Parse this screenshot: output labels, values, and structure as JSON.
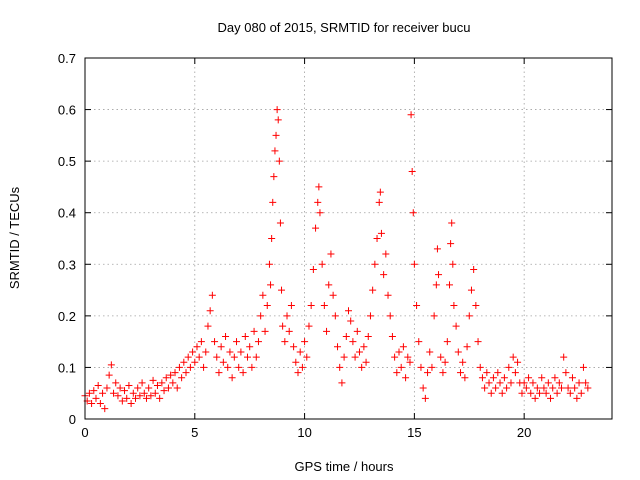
{
  "chart_data": {
    "type": "scatter",
    "title": "Day 080 of 2015, SRMTID for receiver bucu",
    "xlabel": "GPS time / hours",
    "ylabel": "SRMTID / TECUs",
    "xlim": [
      0,
      24
    ],
    "ylim": [
      0,
      0.7
    ],
    "x_ticks": [
      0,
      5,
      10,
      15,
      20
    ],
    "x_tick_labels": [
      "0",
      "5",
      "10",
      "15",
      "20"
    ],
    "y_ticks": [
      0,
      0.1,
      0.2,
      0.3,
      0.4,
      0.5,
      0.6,
      0.7
    ],
    "y_tick_labels": [
      "0",
      "0.1",
      "0.2",
      "0.3",
      "0.4",
      "0.5",
      "0.6",
      "0.7"
    ],
    "grid": true,
    "marker": "+",
    "series": [
      {
        "name": "SRMTID",
        "color": "#ff0000",
        "points": [
          [
            0.0,
            0.045
          ],
          [
            0.1,
            0.035
          ],
          [
            0.2,
            0.05
          ],
          [
            0.3,
            0.03
          ],
          [
            0.4,
            0.055
          ],
          [
            0.5,
            0.04
          ],
          [
            0.6,
            0.065
          ],
          [
            0.7,
            0.03
          ],
          [
            0.8,
            0.05
          ],
          [
            0.9,
            0.02
          ],
          [
            1.0,
            0.06
          ],
          [
            1.1,
            0.085
          ],
          [
            1.2,
            0.105
          ],
          [
            1.3,
            0.05
          ],
          [
            1.4,
            0.07
          ],
          [
            1.5,
            0.045
          ],
          [
            1.6,
            0.06
          ],
          [
            1.7,
            0.035
          ],
          [
            1.8,
            0.055
          ],
          [
            1.9,
            0.04
          ],
          [
            2.0,
            0.065
          ],
          [
            2.1,
            0.03
          ],
          [
            2.2,
            0.05
          ],
          [
            2.3,
            0.04
          ],
          [
            2.4,
            0.06
          ],
          [
            2.5,
            0.045
          ],
          [
            2.6,
            0.07
          ],
          [
            2.7,
            0.05
          ],
          [
            2.8,
            0.04
          ],
          [
            2.9,
            0.06
          ],
          [
            3.0,
            0.045
          ],
          [
            3.1,
            0.075
          ],
          [
            3.2,
            0.05
          ],
          [
            3.3,
            0.065
          ],
          [
            3.4,
            0.04
          ],
          [
            3.5,
            0.07
          ],
          [
            3.6,
            0.055
          ],
          [
            3.7,
            0.08
          ],
          [
            3.8,
            0.06
          ],
          [
            3.9,
            0.085
          ],
          [
            4.0,
            0.07
          ],
          [
            4.1,
            0.09
          ],
          [
            4.2,
            0.06
          ],
          [
            4.3,
            0.1
          ],
          [
            4.4,
            0.08
          ],
          [
            4.5,
            0.11
          ],
          [
            4.6,
            0.09
          ],
          [
            4.7,
            0.12
          ],
          [
            4.8,
            0.1
          ],
          [
            4.9,
            0.13
          ],
          [
            5.0,
            0.11
          ],
          [
            5.1,
            0.14
          ],
          [
            5.2,
            0.12
          ],
          [
            5.3,
            0.15
          ],
          [
            5.4,
            0.1
          ],
          [
            5.5,
            0.13
          ],
          [
            5.6,
            0.18
          ],
          [
            5.7,
            0.21
          ],
          [
            5.8,
            0.24
          ],
          [
            5.9,
            0.15
          ],
          [
            6.0,
            0.12
          ],
          [
            6.1,
            0.09
          ],
          [
            6.2,
            0.14
          ],
          [
            6.3,
            0.11
          ],
          [
            6.4,
            0.16
          ],
          [
            6.5,
            0.1
          ],
          [
            6.6,
            0.13
          ],
          [
            6.7,
            0.08
          ],
          [
            6.8,
            0.12
          ],
          [
            6.9,
            0.15
          ],
          [
            7.0,
            0.1
          ],
          [
            7.1,
            0.13
          ],
          [
            7.2,
            0.09
          ],
          [
            7.3,
            0.16
          ],
          [
            7.4,
            0.12
          ],
          [
            7.5,
            0.14
          ],
          [
            7.6,
            0.1
          ],
          [
            7.7,
            0.17
          ],
          [
            7.8,
            0.12
          ],
          [
            7.9,
            0.15
          ],
          [
            8.0,
            0.2
          ],
          [
            8.1,
            0.24
          ],
          [
            8.2,
            0.17
          ],
          [
            8.3,
            0.22
          ],
          [
            8.4,
            0.3
          ],
          [
            8.45,
            0.26
          ],
          [
            8.5,
            0.35
          ],
          [
            8.55,
            0.42
          ],
          [
            8.6,
            0.47
          ],
          [
            8.65,
            0.52
          ],
          [
            8.7,
            0.55
          ],
          [
            8.75,
            0.6
          ],
          [
            8.8,
            0.58
          ],
          [
            8.85,
            0.5
          ],
          [
            8.9,
            0.38
          ],
          [
            8.95,
            0.25
          ],
          [
            9.0,
            0.18
          ],
          [
            9.1,
            0.15
          ],
          [
            9.2,
            0.2
          ],
          [
            9.3,
            0.17
          ],
          [
            9.4,
            0.22
          ],
          [
            9.5,
            0.14
          ],
          [
            9.6,
            0.11
          ],
          [
            9.7,
            0.09
          ],
          [
            9.8,
            0.13
          ],
          [
            9.9,
            0.1
          ],
          [
            10.0,
            0.15
          ],
          [
            10.1,
            0.12
          ],
          [
            10.2,
            0.18
          ],
          [
            10.3,
            0.22
          ],
          [
            10.4,
            0.29
          ],
          [
            10.5,
            0.37
          ],
          [
            10.6,
            0.42
          ],
          [
            10.65,
            0.45
          ],
          [
            10.7,
            0.4
          ],
          [
            10.8,
            0.3
          ],
          [
            10.9,
            0.22
          ],
          [
            11.0,
            0.17
          ],
          [
            11.1,
            0.26
          ],
          [
            11.2,
            0.32
          ],
          [
            11.3,
            0.24
          ],
          [
            11.4,
            0.2
          ],
          [
            11.5,
            0.14
          ],
          [
            11.6,
            0.1
          ],
          [
            11.7,
            0.07
          ],
          [
            11.8,
            0.12
          ],
          [
            11.9,
            0.16
          ],
          [
            12.0,
            0.21
          ],
          [
            12.1,
            0.19
          ],
          [
            12.2,
            0.15
          ],
          [
            12.3,
            0.12
          ],
          [
            12.4,
            0.17
          ],
          [
            12.5,
            0.13
          ],
          [
            12.6,
            0.1
          ],
          [
            12.7,
            0.14
          ],
          [
            12.8,
            0.11
          ],
          [
            12.9,
            0.16
          ],
          [
            13.0,
            0.2
          ],
          [
            13.1,
            0.25
          ],
          [
            13.2,
            0.3
          ],
          [
            13.3,
            0.35
          ],
          [
            13.4,
            0.42
          ],
          [
            13.45,
            0.44
          ],
          [
            13.5,
            0.36
          ],
          [
            13.6,
            0.28
          ],
          [
            13.7,
            0.32
          ],
          [
            13.8,
            0.24
          ],
          [
            13.9,
            0.2
          ],
          [
            14.0,
            0.16
          ],
          [
            14.1,
            0.12
          ],
          [
            14.2,
            0.09
          ],
          [
            14.3,
            0.13
          ],
          [
            14.4,
            0.1
          ],
          [
            14.5,
            0.14
          ],
          [
            14.6,
            0.08
          ],
          [
            14.7,
            0.12
          ],
          [
            14.8,
            0.11
          ],
          [
            14.85,
            0.59
          ],
          [
            14.9,
            0.48
          ],
          [
            14.95,
            0.4
          ],
          [
            15.0,
            0.3
          ],
          [
            15.1,
            0.22
          ],
          [
            15.2,
            0.15
          ],
          [
            15.3,
            0.1
          ],
          [
            15.4,
            0.06
          ],
          [
            15.5,
            0.04
          ],
          [
            15.6,
            0.09
          ],
          [
            15.7,
            0.13
          ],
          [
            15.8,
            0.1
          ],
          [
            15.9,
            0.2
          ],
          [
            16.0,
            0.26
          ],
          [
            16.05,
            0.33
          ],
          [
            16.1,
            0.28
          ],
          [
            16.2,
            0.12
          ],
          [
            16.3,
            0.09
          ],
          [
            16.4,
            0.11
          ],
          [
            16.5,
            0.15
          ],
          [
            16.6,
            0.26
          ],
          [
            16.65,
            0.34
          ],
          [
            16.7,
            0.38
          ],
          [
            16.75,
            0.3
          ],
          [
            16.8,
            0.22
          ],
          [
            16.9,
            0.18
          ],
          [
            17.0,
            0.13
          ],
          [
            17.1,
            0.09
          ],
          [
            17.2,
            0.11
          ],
          [
            17.3,
            0.08
          ],
          [
            17.4,
            0.14
          ],
          [
            17.5,
            0.2
          ],
          [
            17.6,
            0.25
          ],
          [
            17.7,
            0.29
          ],
          [
            17.8,
            0.22
          ],
          [
            17.9,
            0.15
          ],
          [
            18.0,
            0.1
          ],
          [
            18.1,
            0.08
          ],
          [
            18.2,
            0.06
          ],
          [
            18.3,
            0.09
          ],
          [
            18.4,
            0.07
          ],
          [
            18.5,
            0.05
          ],
          [
            18.6,
            0.08
          ],
          [
            18.7,
            0.06
          ],
          [
            18.8,
            0.09
          ],
          [
            18.9,
            0.07
          ],
          [
            19.0,
            0.05
          ],
          [
            19.1,
            0.08
          ],
          [
            19.2,
            0.06
          ],
          [
            19.3,
            0.1
          ],
          [
            19.4,
            0.07
          ],
          [
            19.5,
            0.12
          ],
          [
            19.6,
            0.09
          ],
          [
            19.7,
            0.11
          ],
          [
            19.8,
            0.07
          ],
          [
            19.9,
            0.05
          ],
          [
            20.0,
            0.07
          ],
          [
            20.1,
            0.06
          ],
          [
            20.2,
            0.08
          ],
          [
            20.3,
            0.05
          ],
          [
            20.4,
            0.07
          ],
          [
            20.5,
            0.04
          ],
          [
            20.6,
            0.06
          ],
          [
            20.7,
            0.05
          ],
          [
            20.8,
            0.08
          ],
          [
            20.9,
            0.06
          ],
          [
            21.0,
            0.05
          ],
          [
            21.1,
            0.07
          ],
          [
            21.2,
            0.04
          ],
          [
            21.3,
            0.06
          ],
          [
            21.4,
            0.08
          ],
          [
            21.5,
            0.05
          ],
          [
            21.6,
            0.07
          ],
          [
            21.7,
            0.06
          ],
          [
            21.8,
            0.12
          ],
          [
            21.9,
            0.09
          ],
          [
            22.0,
            0.06
          ],
          [
            22.1,
            0.05
          ],
          [
            22.2,
            0.08
          ],
          [
            22.3,
            0.06
          ],
          [
            22.4,
            0.04
          ],
          [
            22.5,
            0.07
          ],
          [
            22.6,
            0.05
          ],
          [
            22.7,
            0.1
          ],
          [
            22.8,
            0.07
          ],
          [
            22.9,
            0.06
          ]
        ]
      }
    ]
  }
}
